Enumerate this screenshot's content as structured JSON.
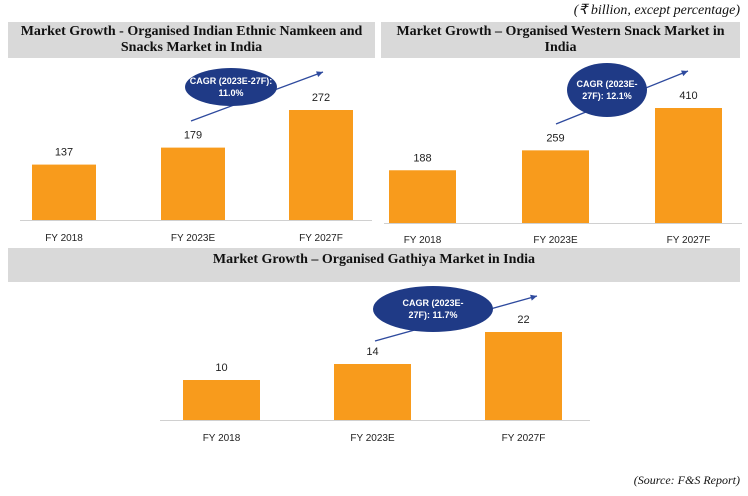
{
  "unit_note": "(₹ billion, except percentage)",
  "source_note": "(Source: F&S Report)",
  "colors": {
    "bar": "#f89b1c",
    "cagr_bubble": "#1f3a86",
    "arrow": "#2e4a9e",
    "title_band": "#d9d9d9"
  },
  "chart_data": [
    {
      "type": "bar",
      "title": "Market Growth - Organised Indian Ethnic Namkeen and Snacks Market in India",
      "categories": [
        "FY 2018",
        "FY 2023E",
        "FY 2027F"
      ],
      "values": [
        137,
        179,
        272
      ],
      "value_labels": [
        "137",
        "179",
        "272"
      ],
      "cagr_label": "CAGR (2023E-27F): 11.0%",
      "xlabel": "",
      "ylabel": "",
      "ylim": [
        0,
        280
      ]
    },
    {
      "type": "bar",
      "title": "Market Growth – Organised Western Snack Market in India",
      "categories": [
        "FY 2018",
        "FY 2023E",
        "FY 2027F"
      ],
      "values": [
        188,
        259,
        410
      ],
      "value_labels": [
        "188",
        "259",
        "410"
      ],
      "cagr_label": "CAGR (2023E-27F): 12.1%",
      "xlabel": "",
      "ylabel": "",
      "ylim": [
        0,
        420
      ]
    },
    {
      "type": "bar",
      "title": "Market Growth – Organised Gathiya Market in India",
      "categories": [
        "FY 2018",
        "FY 2023E",
        "FY 2027F"
      ],
      "values": [
        10,
        14,
        22
      ],
      "value_labels": [
        "10",
        "14",
        "22"
      ],
      "cagr_label": "CAGR (2023E-27F): 11.7%",
      "xlabel": "",
      "ylabel": "",
      "ylim": [
        0,
        22.5
      ]
    }
  ]
}
